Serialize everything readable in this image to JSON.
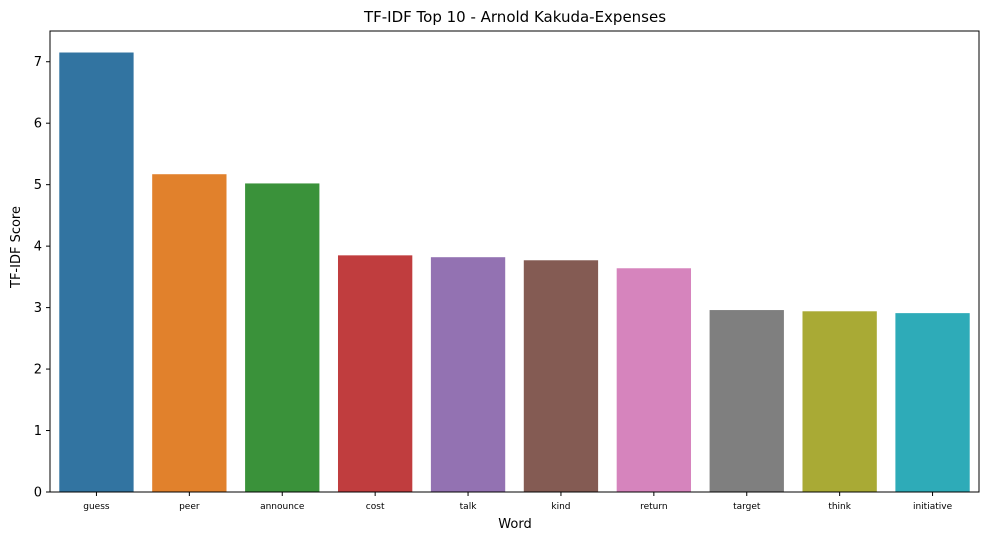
{
  "chart_data": {
    "type": "bar",
    "title": "TF-IDF Top 10 - Arnold Kakuda-Expenses",
    "xlabel": "Word",
    "ylabel": "TF-IDF Score",
    "categories": [
      "guess",
      "peer",
      "announce",
      "cost",
      "talk",
      "kind",
      "return",
      "target",
      "think",
      "initiative"
    ],
    "values": [
      7.15,
      5.17,
      5.02,
      3.85,
      3.82,
      3.77,
      3.64,
      2.96,
      2.94,
      2.91
    ],
    "colors": [
      "#3274a1",
      "#e1812c",
      "#3a923a",
      "#c03d3e",
      "#9372b2",
      "#845b53",
      "#d684bd",
      "#7f7f7f",
      "#a9aa35",
      "#2eabb8"
    ],
    "ylim": [
      0,
      7.5
    ],
    "yticks": [
      0,
      1,
      2,
      3,
      4,
      5,
      6,
      7
    ],
    "grid": false,
    "legend": "none"
  }
}
